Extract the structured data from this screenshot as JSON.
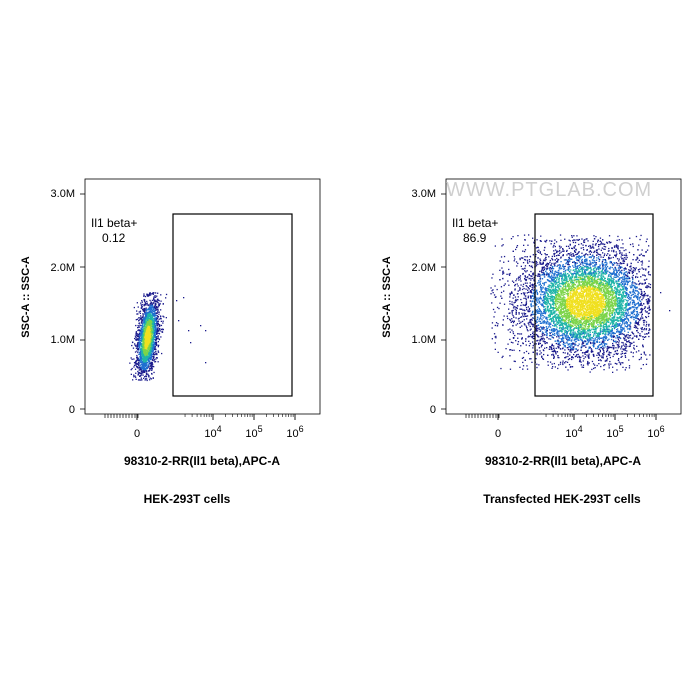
{
  "watermark": "WWW.PTGLAB.COM",
  "chart_data": [
    {
      "type": "scatter",
      "caption": "HEK-293T cells",
      "xlabel": "98310-2-RR(Il1 beta),APC-A",
      "ylabel": "SSC-A :: SSC-A",
      "x_scale": "biexponential",
      "y_ticks": [
        "0",
        "1.0M",
        "2.0M",
        "3.0M"
      ],
      "x_ticks": [
        {
          "base": "0",
          "exp": ""
        },
        {
          "base": "10",
          "exp": "4"
        },
        {
          "base": "10",
          "exp": "5"
        },
        {
          "base": "10",
          "exp": "6"
        }
      ],
      "ylim": [
        0,
        3000000
      ],
      "gate": {
        "name": "Il1 beta+",
        "percent": "0.12"
      },
      "population": {
        "x_center": "0",
        "y_center": 1000000,
        "description": "single dense cluster near zero, negative for Il1 beta"
      }
    },
    {
      "type": "scatter",
      "caption": "Transfected HEK-293T cells",
      "xlabel": "98310-2-RR(Il1 beta),APC-A",
      "ylabel": "SSC-A :: SSC-A",
      "x_scale": "biexponential",
      "y_ticks": [
        "0",
        "1.0M",
        "2.0M",
        "3.0M"
      ],
      "x_ticks": [
        {
          "base": "0",
          "exp": ""
        },
        {
          "base": "10",
          "exp": "4"
        },
        {
          "base": "10",
          "exp": "5"
        },
        {
          "base": "10",
          "exp": "6"
        }
      ],
      "ylim": [
        0,
        3000000
      ],
      "gate": {
        "name": "Il1 beta+",
        "percent": "86.9"
      },
      "population": {
        "x_center": "10^4.3",
        "y_center": 1500000,
        "description": "broad population spanning 10^3 to 10^6, mostly inside gate"
      }
    }
  ]
}
